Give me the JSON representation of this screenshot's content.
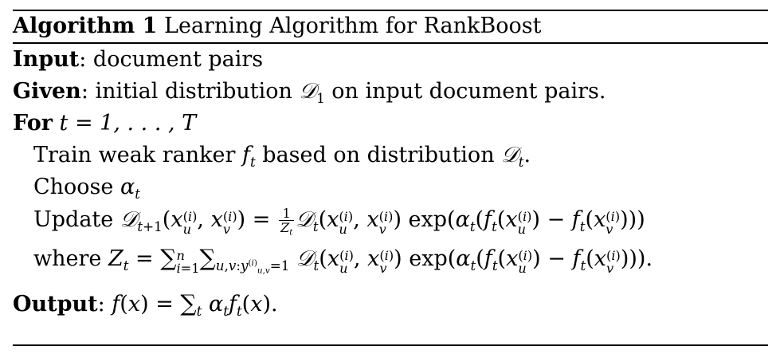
{
  "algorithm": {
    "label": "Algorithm 1",
    "title": "Learning Algorithm for RankBoost",
    "input_label": "Input",
    "input_text": ": document pairs",
    "given_label": "Given",
    "given_text_1": ": initial distribution ",
    "given_text_2": " on input document pairs.",
    "for_label": "For",
    "for_expr": "t = 1, . . . , T",
    "train_text_1": "Train weak ranker ",
    "train_text_2": " based on distribution ",
    "choose_text": "Choose ",
    "update_text": "Update ",
    "where_text": "where ",
    "output_label": "Output",
    "output_text": ": "
  }
}
